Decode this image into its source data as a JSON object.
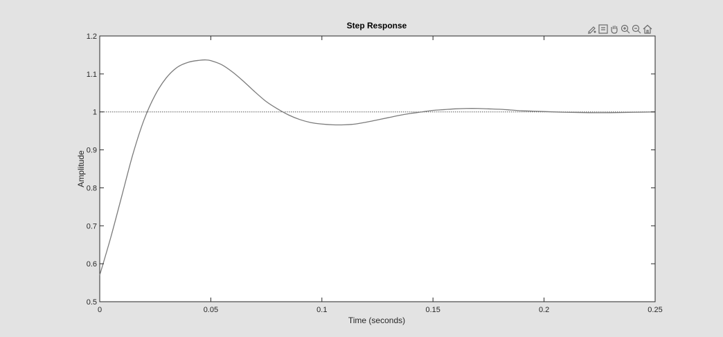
{
  "chart_data": {
    "type": "line",
    "title": "Step Response",
    "xlabel": "Time (seconds)",
    "ylabel": "Amplitude",
    "xlim": [
      0,
      0.25
    ],
    "ylim": [
      0.5,
      1.2
    ],
    "x_ticks": [
      "0",
      "0.05",
      "0.1",
      "0.15",
      "0.2",
      "0.25"
    ],
    "y_ticks": [
      "0.5",
      "0.6",
      "0.7",
      "0.8",
      "0.9",
      "1",
      "1.1",
      "1.2"
    ],
    "grid": false,
    "reference_line": {
      "y": 1,
      "style": "dotted"
    },
    "series": [
      {
        "x": [
          0,
          0.005,
          0.01,
          0.015,
          0.02,
          0.025,
          0.03,
          0.035,
          0.04,
          0.045,
          0.0475,
          0.05,
          0.055,
          0.06,
          0.065,
          0.07,
          0.075,
          0.08,
          0.085,
          0.09,
          0.095,
          0.1,
          0.105,
          0.11,
          0.115,
          0.12,
          0.125,
          0.13,
          0.135,
          0.14,
          0.145,
          0.15,
          0.155,
          0.16,
          0.165,
          0.17,
          0.175,
          0.18,
          0.185,
          0.19,
          0.195,
          0.2,
          0.21,
          0.22,
          0.23,
          0.24,
          0.25
        ],
        "values": [
          0.57,
          0.67,
          0.78,
          0.89,
          0.98,
          1.045,
          1.09,
          1.118,
          1.131,
          1.136,
          1.137,
          1.135,
          1.124,
          1.104,
          1.079,
          1.052,
          1.027,
          1.008,
          0.992,
          0.98,
          0.972,
          0.968,
          0.966,
          0.966,
          0.968,
          0.973,
          0.979,
          0.985,
          0.991,
          0.996,
          1.0,
          1.004,
          1.006,
          1.008,
          1.009,
          1.009,
          1.008,
          1.007,
          1.005,
          1.003,
          1.002,
          1.001,
          0.999,
          0.998,
          0.998,
          0.999,
          1.0
        ]
      }
    ],
    "line_color": "#7a7a7a"
  },
  "toolbar": {
    "icons": [
      "brush-icon",
      "datatip-icon",
      "pan-icon",
      "zoom-in-icon",
      "zoom-out-icon",
      "home-icon"
    ]
  }
}
